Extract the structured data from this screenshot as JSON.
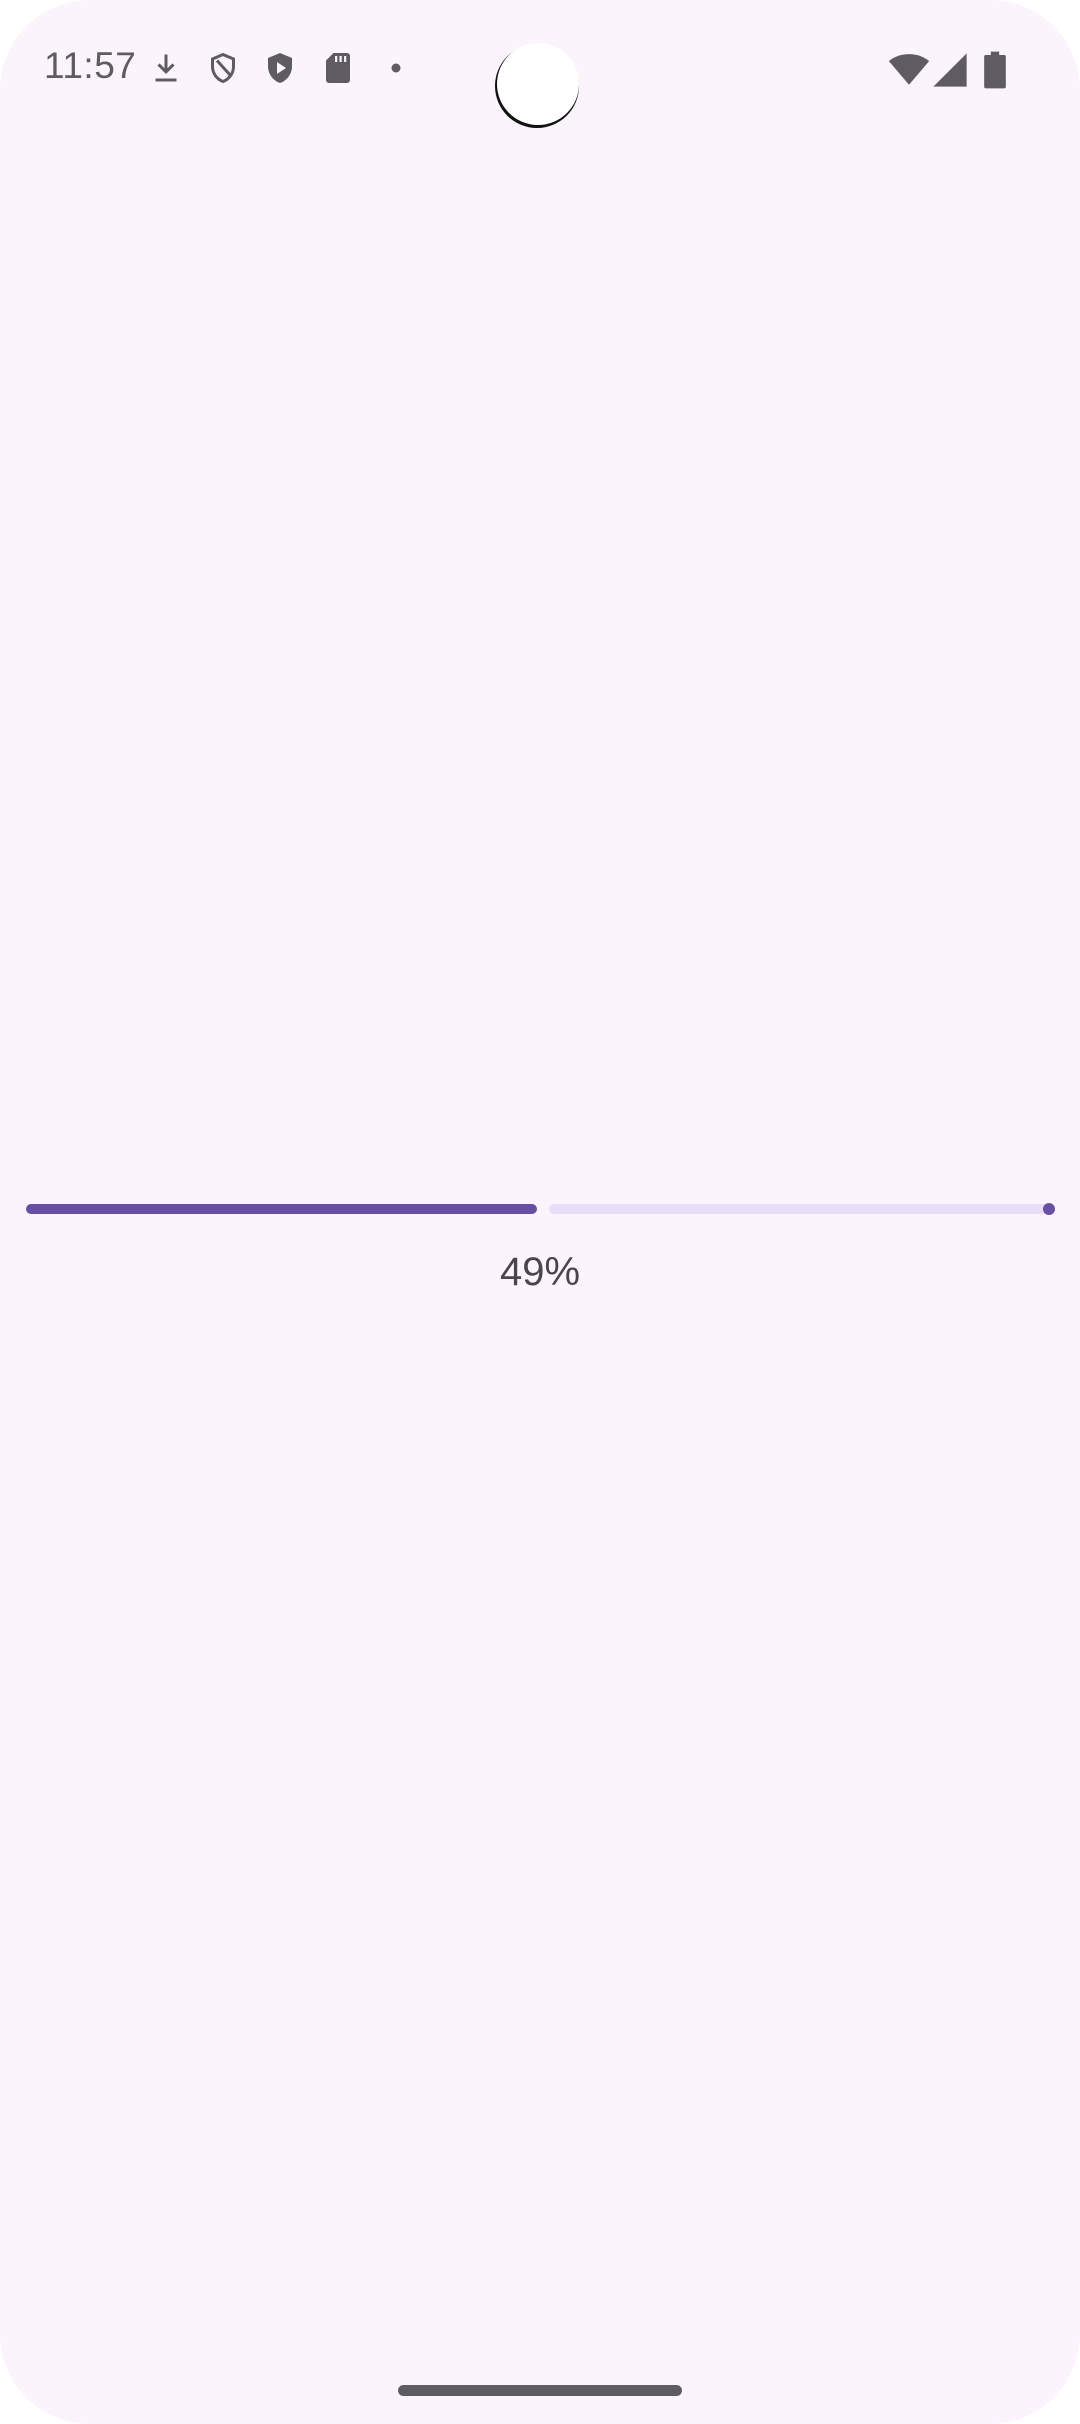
{
  "status_bar": {
    "time": "11:57",
    "icons": [
      "download-icon",
      "shield-outline-icon",
      "shield-play-icon",
      "sd-card-icon",
      "dot-icon",
      "wifi-icon",
      "cellular-signal-icon",
      "battery-icon"
    ],
    "icon_color": "#5f5b63"
  },
  "progress": {
    "value": 0.49,
    "label": "49%",
    "active_color": "#6750a4",
    "track_color": "#e8def8"
  },
  "colors": {
    "background": "#fcf4fc"
  }
}
